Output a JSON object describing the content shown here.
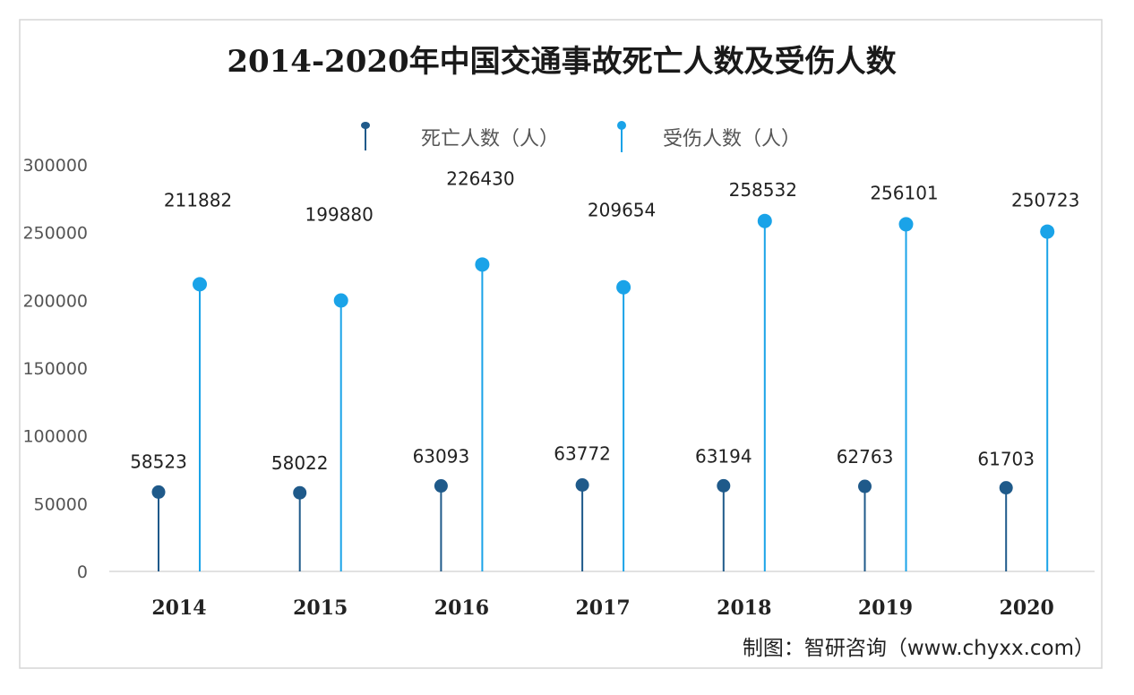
{
  "chart_data": {
    "type": "lollipop",
    "title": "2014-2020年中国交通事故死亡人数及受伤人数",
    "categories": [
      "2014",
      "2015",
      "2016",
      "2017",
      "2018",
      "2019",
      "2020"
    ],
    "series": [
      {
        "name": "死亡人数（人）",
        "color": "#1f5a8a",
        "values": [
          58523,
          58022,
          63093,
          63772,
          63194,
          62763,
          61703
        ]
      },
      {
        "name": "受伤人数（人）",
        "color": "#1aa3e8",
        "values": [
          211882,
          199880,
          226430,
          209654,
          258532,
          256101,
          250723
        ]
      }
    ],
    "yticks": [
      "0",
      "50000",
      "100000",
      "150000",
      "200000",
      "250000",
      "300000"
    ],
    "ylim": [
      0,
      300000
    ],
    "grid": false,
    "legend_position": "top-center",
    "source": "制图：智研咨询（www.chyxx.com）"
  }
}
